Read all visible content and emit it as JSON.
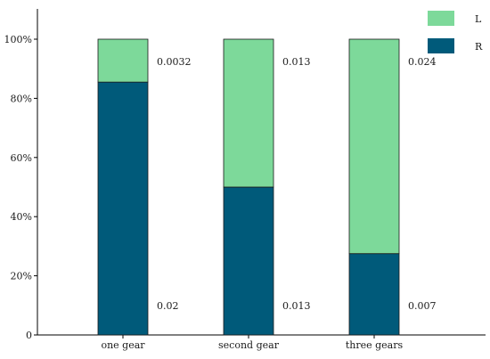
{
  "chart_data": {
    "type": "bar",
    "stacked": true,
    "categories": [
      "one gear",
      "second gear",
      "three gears"
    ],
    "series": [
      {
        "name": "R",
        "color": "#005a7a",
        "values": [
          85.5,
          50.0,
          27.5
        ],
        "labels": [
          "0.02",
          "0.013",
          "0.007"
        ]
      },
      {
        "name": "L",
        "color": "#7dd99a",
        "values": [
          14.5,
          50.0,
          72.5
        ],
        "labels": [
          "0.0032",
          "0.013",
          "0.024"
        ]
      }
    ],
    "ylim": [
      0,
      100
    ],
    "yticks": [
      "0",
      "20%",
      "40%",
      "60%",
      "80%",
      "100%"
    ],
    "legend_position": "top-right",
    "grid": false,
    "title": "",
    "xlabel": "",
    "ylabel": ""
  }
}
